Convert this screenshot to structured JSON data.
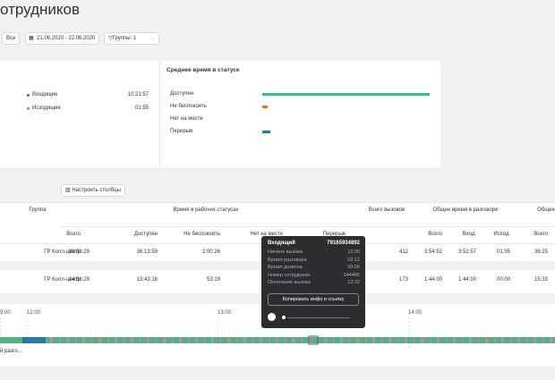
{
  "header": {
    "title": "отрудников"
  },
  "filters": {
    "all": "Все",
    "dates": "21.06.2020 - 22.06.2020",
    "groups": "Группы: 1"
  },
  "calls_card": {
    "rows": [
      [
        "Входящие",
        "10:21:57"
      ],
      [
        "Исходящие",
        "01:55"
      ]
    ]
  },
  "status_card": {
    "title": "Среднее время в статусе",
    "items": [
      {
        "label": "Доступен",
        "value": 100,
        "color": "#4cb585"
      },
      {
        "label": "Не беспокоить",
        "value": 3,
        "color": "#e0702a"
      },
      {
        "label": "Нет на месте",
        "value": 0,
        "color": "#4cb585"
      },
      {
        "label": "Перерыв",
        "value": 5,
        "color": "#1f7fa3"
      }
    ]
  },
  "columns_button": "Настроить столбцы",
  "table": {
    "headers": [
      "Группа",
      "Время в рабочих статусах",
      "Всего вызовов",
      "Общее время в разговоре",
      "Общее"
    ],
    "subheaders": [
      "Всего",
      "Доступен",
      "Не беспокоить",
      "Нет на месте",
      "Перерыв",
      "Всего",
      "Вход.",
      "Исход.",
      "Всего"
    ],
    "rows": [
      [
        "ГР Колл-центр",
        "38:56:29",
        "36:13:59",
        "2:00:26",
        "412",
        "3:54:52",
        "3:52:57",
        "01:55",
        "36:25"
      ],
      [
        "ГР Колл-центр",
        "14:56:29",
        "13:43:18",
        "53:19",
        "173",
        "1:44:00",
        "1:44:00",
        "00:00",
        "15:33"
      ]
    ]
  },
  "timeline": {
    "labels": [
      "9:00",
      "12:00",
      "13:00",
      "14:00"
    ],
    "caption": "й разго..."
  },
  "tooltip": {
    "type": "Входящий",
    "number": "79165934892",
    "rows": [
      [
        "Начало вызова",
        "13:30"
      ],
      [
        "Время разговора",
        "02:12"
      ],
      [
        "Время дозвона",
        "00:06"
      ],
      [
        "Номер сотрудника",
        "044486"
      ],
      [
        "Окончание вызова",
        "13:32"
      ]
    ],
    "button": "Копировать инфо и ссылку"
  }
}
